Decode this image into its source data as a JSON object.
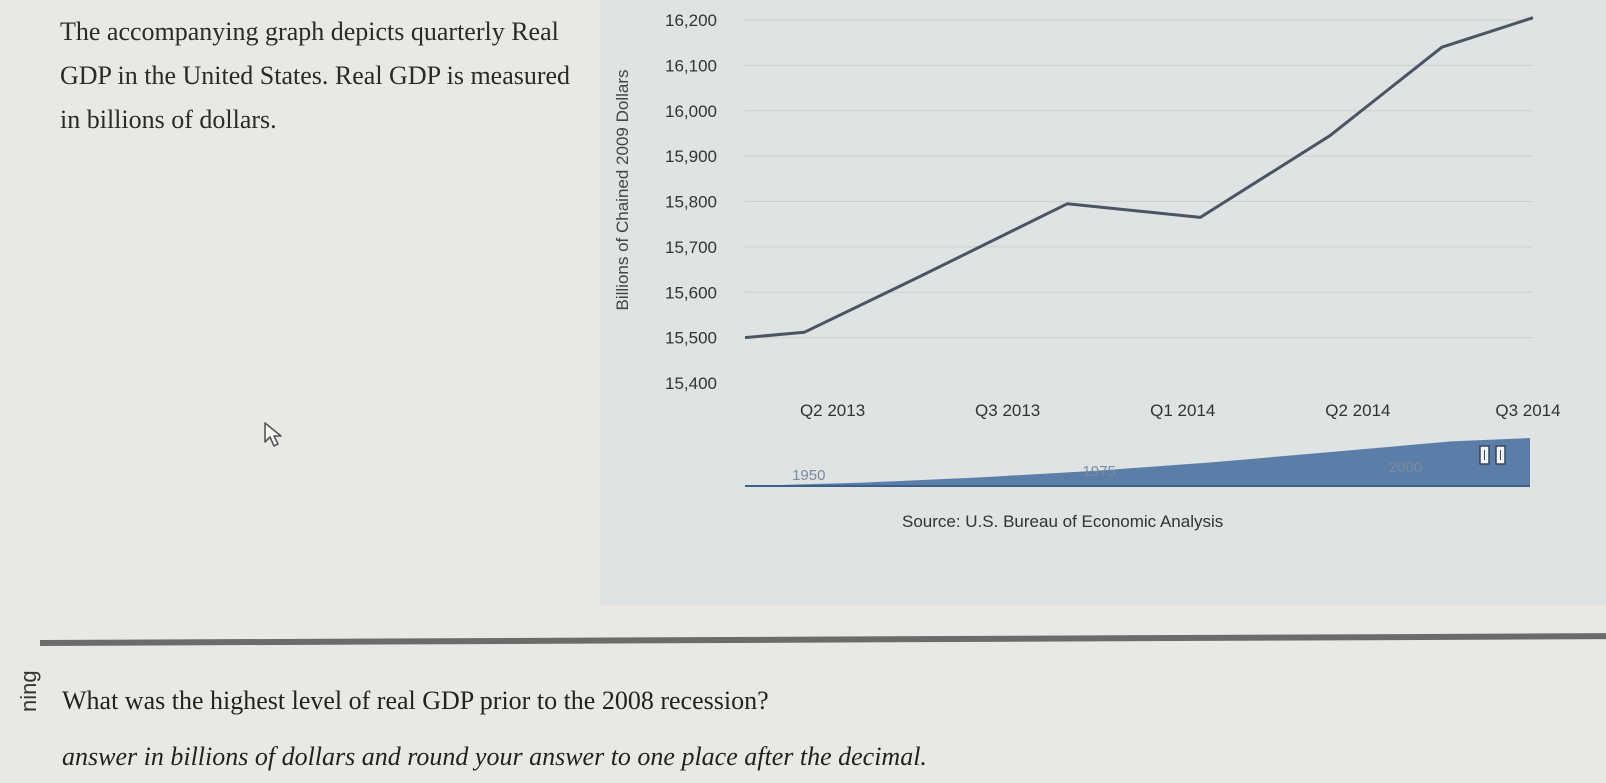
{
  "intro_text": "The accompanying graph depicts quarterly Real GDP in the United States. Real GDP is measured in billions of dollars.",
  "question": "What was the highest level of real GDP prior to the 2008 recession?",
  "instruction": "answer in billions of dollars and round your answer to one place after the decimal.",
  "side_label": "ning",
  "chart_data": {
    "type": "line",
    "ylabel": "Billions of Chained 2009 Dollars",
    "ylim": [
      15400,
      16200
    ],
    "yticks": [
      15400,
      15500,
      15600,
      15700,
      15800,
      15900,
      16000,
      16100,
      16200
    ],
    "ytick_labels": [
      "15,400",
      "15,500",
      "15,600",
      "15,700",
      "15,800",
      "15,900",
      "16,000",
      "16,100",
      "16,200"
    ],
    "x_tick_labels": [
      "Q2 2013",
      "Q3 2013",
      "Q1 2014",
      "Q2 2014",
      "Q3 2014"
    ],
    "x_tick_positions": [
      2013.25,
      2013.75,
      2014.25,
      2014.75,
      2015.25
    ],
    "xlim": [
      2013.0,
      2015.25
    ],
    "series": [
      {
        "name": "Real GDP",
        "x": [
          2013.0,
          2013.17,
          2013.5,
          2013.92,
          2014.3,
          2014.67,
          2014.99,
          2015.25
        ],
        "y": [
          15500,
          15512,
          15635,
          15795,
          15765,
          15945,
          16140,
          16205
        ]
      }
    ],
    "navigator": {
      "labels": [
        "1950",
        "1975",
        "2000"
      ],
      "x": [
        0,
        0.15,
        0.3,
        0.45,
        0.6,
        0.75,
        0.9,
        1.0
      ],
      "y": [
        0.0,
        0.04,
        0.1,
        0.18,
        0.28,
        0.4,
        0.52,
        0.56
      ]
    },
    "source": "Source: U.S. Bureau of Economic Analysis",
    "colors": {
      "line": "#4a5463",
      "navigator_fill": "#5b7ea8",
      "grid": "#cfcfcf",
      "panel": "#dfe3e3"
    }
  }
}
